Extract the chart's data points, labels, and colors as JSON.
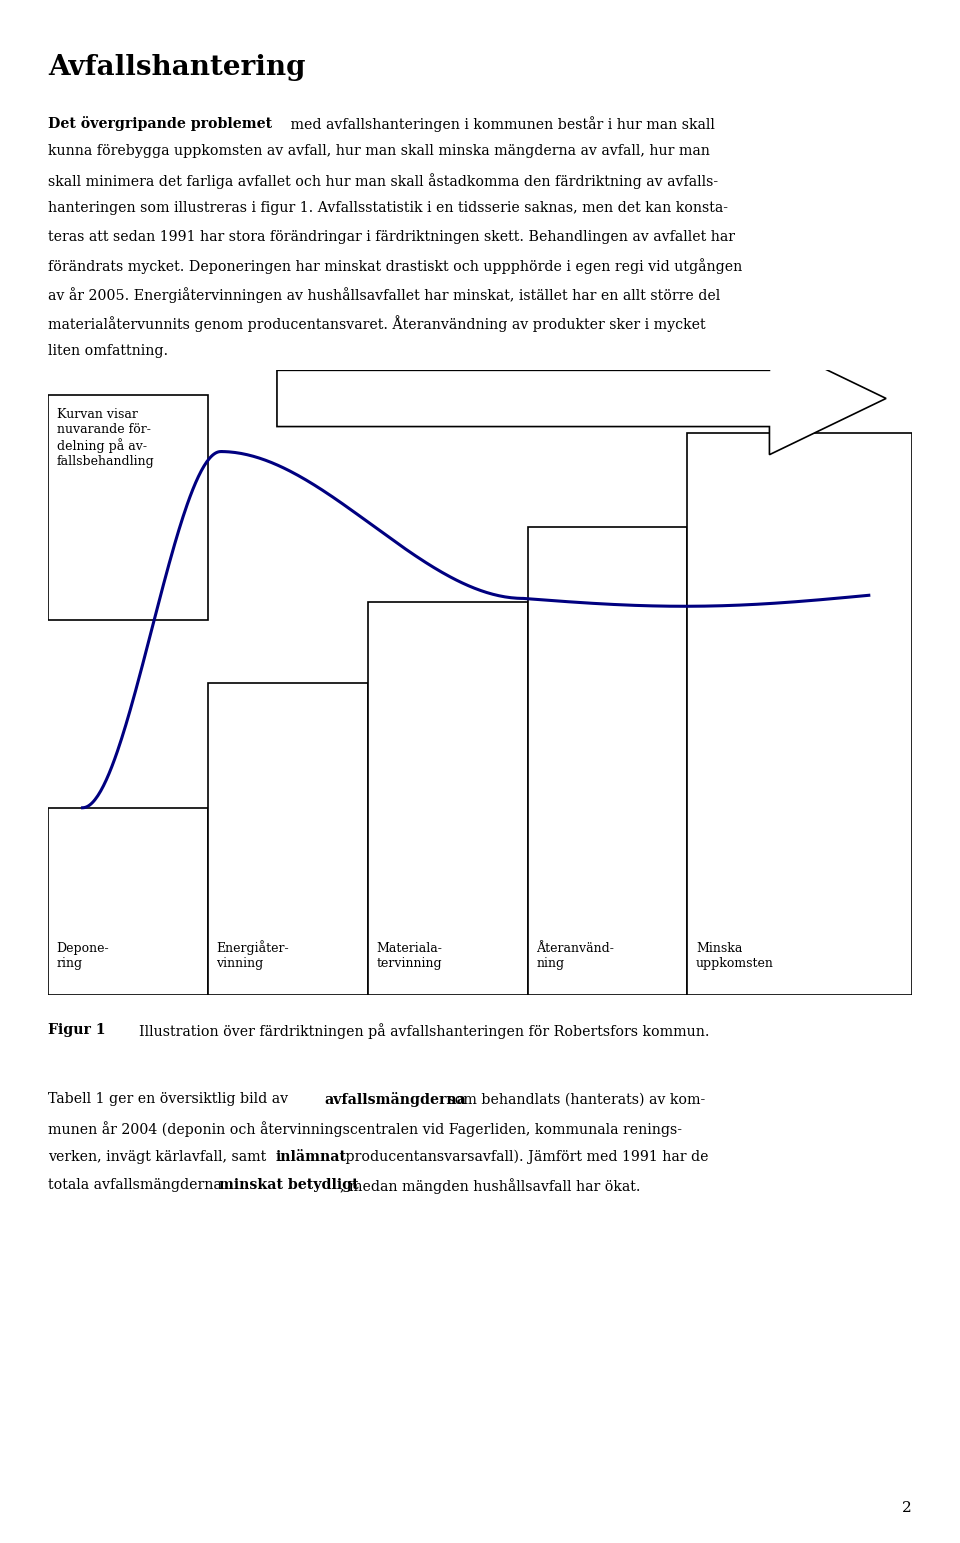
{
  "title": "Avfallshantering",
  "para1_line1": "Det övergripande problemet med avfallshanteringen i kommunen består i hur man skall",
  "para1_line2": "kunna förebygga uppkomsten av avfall, hur man skall minska mängderna av avfall, hur man",
  "para1_line3": "skall minimera det farliga avfallet och hur man skall åstadkomma den färdriktning av avfalls-",
  "para1_line4": "hanteringen som illustreras i figur 1. Avfallsstatistik i en tidsserie saknas, men det kan konsta-",
  "para1_line5": "teras att sedan 1991 har stora förändringar i färdriktningen skett. Behandlingen av avfallet har",
  "para1_line6": "förändrats mycket. Deponeringen har minskat drastiskt och uppphörde i egen regi vid utgången",
  "para1_line7": "av år 2005. Energiåtervinningen av hushållsavfallet har minskat, istället har en allt större del",
  "para1_line8": "materialåtervunnits genom producentansvaret. Återanvändning av produkter sker i mycket",
  "para1_line9": "liten omfattning.",
  "figur_label": "Figur 1",
  "figur_caption": "Illustration över färdriktningen på avfallshanteringen för Robertsfors kommun.",
  "para2": "Tabell 1 ger en översiktlig bild av avfallsmängderna som behandlats (hanterats) av kom-\nmunen år 2004 (deponin och återvinningscentralen vid Fagerliden, kommunala renings-\nverken, invägt kärlavfall, samt inlämnat producentansvarsavfall). Jämfört med 1991 har de\ntotala avfallsmängderna minskat betydligt, medan mängden hushållsavfall har ökat.",
  "page_number": "2",
  "curve_color": "#000080",
  "box_info_label": "Kurvan visar\nnuvarande för-\ndelning på av-\nfallsbehandling",
  "boxes": [
    {
      "label": "Depone-\nring",
      "col": 0,
      "row": 0
    },
    {
      "label": "Energiåter-\nvinning",
      "col": 1,
      "row": 1
    },
    {
      "label": "Materiala-\ntervinning",
      "col": 2,
      "row": 2
    },
    {
      "label": "Återanvänd-\nning",
      "col": 3,
      "row": 3
    },
    {
      "label": "Minska\nuppkomsten",
      "col": 4,
      "row": 4
    }
  ]
}
